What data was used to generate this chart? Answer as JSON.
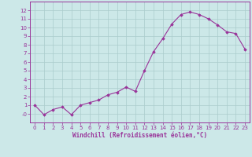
{
  "x": [
    0,
    1,
    2,
    3,
    4,
    5,
    6,
    7,
    8,
    9,
    10,
    11,
    12,
    13,
    14,
    15,
    16,
    17,
    18,
    19,
    20,
    21,
    22,
    23
  ],
  "y": [
    1.0,
    -0.1,
    0.5,
    0.8,
    -0.1,
    1.0,
    1.3,
    1.6,
    2.2,
    2.5,
    3.1,
    2.6,
    5.0,
    7.2,
    8.7,
    10.4,
    11.5,
    11.8,
    11.5,
    11.0,
    10.3,
    9.5,
    9.3,
    7.5
  ],
  "line_color": "#993399",
  "marker": "D",
  "marker_size": 1.8,
  "bg_color": "#cce8e8",
  "grid_color": "#aacccc",
  "xlabel": "Windchill (Refroidissement éolien,°C)",
  "xlim": [
    -0.5,
    23.5
  ],
  "ylim": [
    -1.0,
    13.0
  ],
  "yticks": [
    0,
    1,
    2,
    3,
    4,
    5,
    6,
    7,
    8,
    9,
    10,
    11,
    12
  ],
  "xticks": [
    0,
    1,
    2,
    3,
    4,
    5,
    6,
    7,
    8,
    9,
    10,
    11,
    12,
    13,
    14,
    15,
    16,
    17,
    18,
    19,
    20,
    21,
    22,
    23
  ],
  "tick_color": "#993399",
  "axis_color": "#993399",
  "xlabel_color": "#993399",
  "tick_fontsize": 5.0,
  "xlabel_fontsize": 5.5
}
